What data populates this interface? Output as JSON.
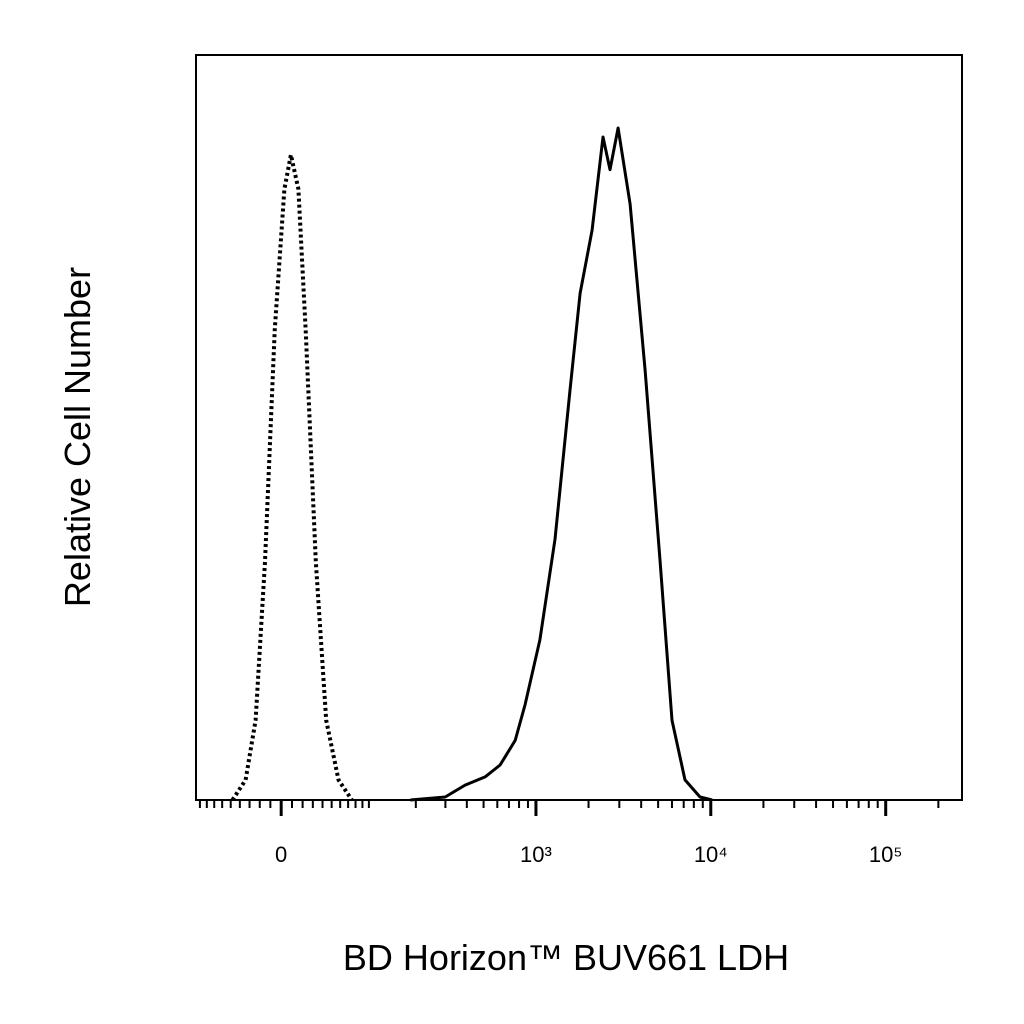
{
  "chart_data": {
    "type": "line",
    "x_label": "BD Horizon™ BUV661 LDH",
    "y_label": "Relative Cell Number",
    "xscale": "biexponential",
    "xlim": [
      -96,
      273000
    ],
    "ylim": [
      0,
      100
    ],
    "xticks": [
      0,
      {
        "value": 1000,
        "label": "10³"
      },
      {
        "value": 10000,
        "label": "10⁴"
      },
      {
        "value": 100000,
        "label": "10⁵"
      }
    ],
    "minor_xticks": [
      -90,
      -80,
      -70,
      -60,
      -50,
      -40,
      -30,
      -20,
      -10,
      10,
      20,
      30,
      40,
      50,
      60,
      70,
      80,
      90,
      100,
      200,
      300,
      400,
      500,
      600,
      700,
      800,
      900,
      2000,
      3000,
      4000,
      5000,
      6000,
      7000,
      8000,
      9000,
      20000,
      30000,
      40000,
      50000,
      60000,
      70000,
      80000,
      90000,
      200000
    ],
    "series": [
      {
        "style": "dotted",
        "color": "#000000",
        "x": [
          -48,
          -34,
          -24,
          -15,
          -6,
          3,
          9,
          16,
          23,
          33,
          44,
          58,
          75
        ],
        "values": [
          0,
          2.7,
          10.7,
          32,
          63,
          82,
          86.6,
          82,
          63,
          32,
          10.7,
          2.7,
          0
        ]
      },
      {
        "style": "solid",
        "color": "#000000",
        "x": [
          185,
          299,
          391,
          510,
          623,
          760,
          867,
          1054,
          1285,
          1567,
          1790,
          2095,
          2420,
          2655,
          2950,
          3455,
          4210,
          5125,
          6005,
          7125,
          8680,
          10185
        ],
        "values": [
          0,
          0.4,
          2,
          3.1,
          4.7,
          8,
          12.8,
          21.5,
          35,
          55,
          68,
          76.5,
          89,
          84.6,
          90.2,
          80,
          57.7,
          32.2,
          10.7,
          2.7,
          0.4,
          0
        ]
      }
    ]
  }
}
